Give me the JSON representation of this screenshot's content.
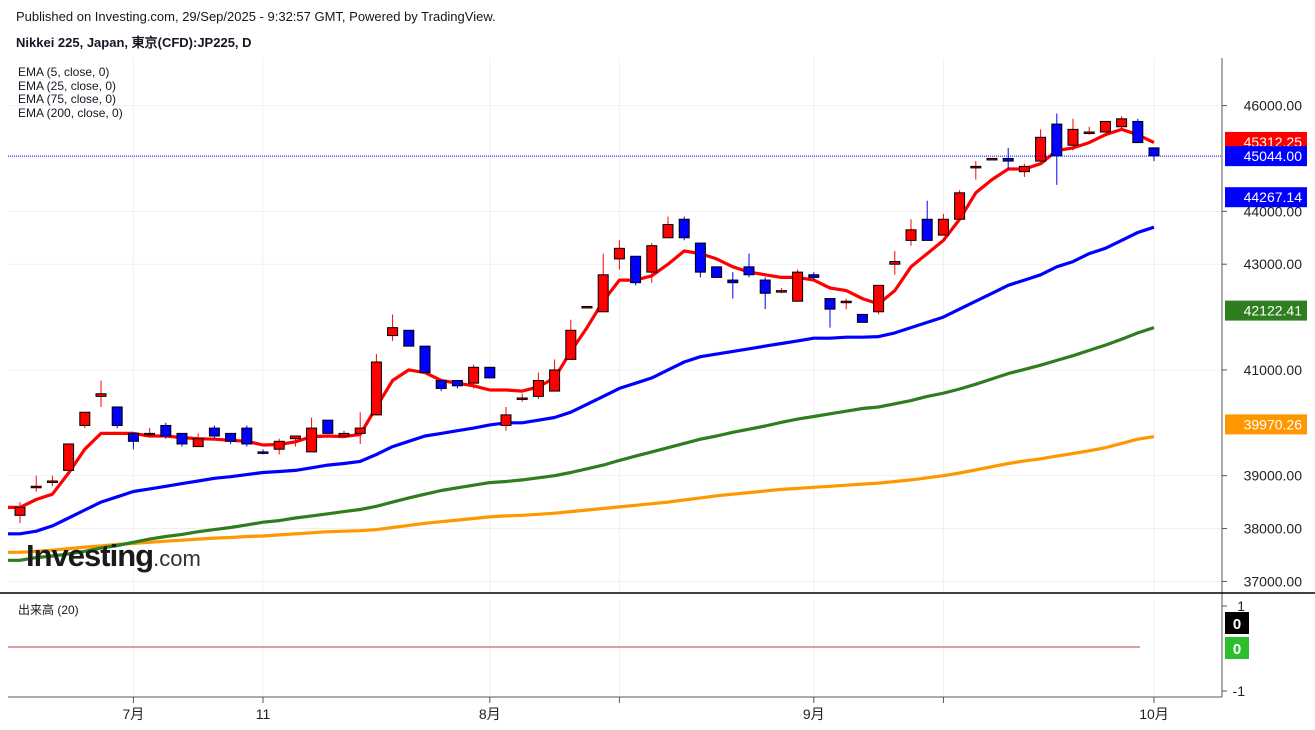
{
  "header": {
    "published": "Published on Investing.com, 29/Sep/2025 - 9:32:57 GMT, Powered by TradingView.",
    "instrument": "Nikkei 225, Japan, 東京(CFD):JP225, D"
  },
  "legend": {
    "ema_lines": [
      "EMA (5, close, 0)",
      "EMA (25, close, 0)",
      "EMA (75, close, 0)",
      "EMA (200, close, 0)"
    ],
    "volume_label": "出来高 (20)"
  },
  "watermark": {
    "brand": "Investing",
    "suffix": ".com"
  },
  "colors": {
    "up": "#ff0000",
    "down": "#0000ff",
    "ema5": "#ff0000",
    "ema25": "#0000ff",
    "ema75": "#2e7d1e",
    "ema200": "#ff9800",
    "last_price_line": "#0000ff"
  },
  "chart_data": {
    "type": "candlestick",
    "ylim": [
      36800,
      46900
    ],
    "y_ticks": [
      "37000.00",
      "38000.00",
      "39000.00",
      "41000.00",
      "43000.00",
      "44000.00",
      "46000.00"
    ],
    "x_ticks": [
      {
        "label": "7月",
        "index": 7
      },
      {
        "label": "11",
        "index": 15
      },
      {
        "label": "8月",
        "index": 29
      },
      {
        "label": "",
        "index": 37
      },
      {
        "label": "9月",
        "index": 49
      },
      {
        "label": "",
        "index": 57
      },
      {
        "label": "10月",
        "index": 70
      }
    ],
    "candles": [
      {
        "o": 38250,
        "h": 38500,
        "l": 38100,
        "c": 38400
      },
      {
        "o": 38800,
        "h": 39000,
        "l": 38700,
        "c": 38800
      },
      {
        "o": 38900,
        "h": 39000,
        "l": 38800,
        "c": 38900
      },
      {
        "o": 39100,
        "h": 39600,
        "l": 39100,
        "c": 39600
      },
      {
        "o": 39950,
        "h": 40200,
        "l": 39900,
        "c": 40200
      },
      {
        "o": 40500,
        "h": 40800,
        "l": 40300,
        "c": 40550
      },
      {
        "o": 40300,
        "h": 40300,
        "l": 39900,
        "c": 39950
      },
      {
        "o": 39800,
        "h": 39800,
        "l": 39500,
        "c": 39650
      },
      {
        "o": 39800,
        "h": 39900,
        "l": 39750,
        "c": 39800
      },
      {
        "o": 39950,
        "h": 40000,
        "l": 39700,
        "c": 39750
      },
      {
        "o": 39800,
        "h": 39800,
        "l": 39550,
        "c": 39600
      },
      {
        "o": 39550,
        "h": 39800,
        "l": 39550,
        "c": 39700
      },
      {
        "o": 39900,
        "h": 39950,
        "l": 39700,
        "c": 39750
      },
      {
        "o": 39800,
        "h": 39800,
        "l": 39600,
        "c": 39650
      },
      {
        "o": 39900,
        "h": 39950,
        "l": 39550,
        "c": 39600
      },
      {
        "o": 39450,
        "h": 39500,
        "l": 39400,
        "c": 39430
      },
      {
        "o": 39500,
        "h": 39700,
        "l": 39400,
        "c": 39650
      },
      {
        "o": 39700,
        "h": 39750,
        "l": 39550,
        "c": 39750
      },
      {
        "o": 39450,
        "h": 40100,
        "l": 39450,
        "c": 39900
      },
      {
        "o": 40050,
        "h": 40050,
        "l": 39800,
        "c": 39800
      },
      {
        "o": 39750,
        "h": 39850,
        "l": 39750,
        "c": 39800
      },
      {
        "o": 39800,
        "h": 40200,
        "l": 39600,
        "c": 39900
      },
      {
        "o": 40150,
        "h": 41300,
        "l": 40150,
        "c": 41150
      },
      {
        "o": 41650,
        "h": 42050,
        "l": 41550,
        "c": 41800
      },
      {
        "o": 41750,
        "h": 41750,
        "l": 41450,
        "c": 41450
      },
      {
        "o": 41450,
        "h": 41450,
        "l": 40950,
        "c": 40950
      },
      {
        "o": 40800,
        "h": 40800,
        "l": 40600,
        "c": 40650
      },
      {
        "o": 40800,
        "h": 40800,
        "l": 40650,
        "c": 40700
      },
      {
        "o": 40750,
        "h": 41100,
        "l": 40650,
        "c": 41050
      },
      {
        "o": 41050,
        "h": 41050,
        "l": 40850,
        "c": 40850
      },
      {
        "o": 39950,
        "h": 40300,
        "l": 39850,
        "c": 40150
      },
      {
        "o": 40450,
        "h": 40550,
        "l": 40400,
        "c": 40470
      },
      {
        "o": 40500,
        "h": 40950,
        "l": 40450,
        "c": 40800
      },
      {
        "o": 40600,
        "h": 41200,
        "l": 40600,
        "c": 41000
      },
      {
        "o": 41200,
        "h": 41950,
        "l": 41200,
        "c": 41750
      },
      {
        "o": 42200,
        "h": 42200,
        "l": 42200,
        "c": 42200
      },
      {
        "o": 42100,
        "h": 43200,
        "l": 42100,
        "c": 42800
      },
      {
        "o": 43100,
        "h": 43450,
        "l": 42900,
        "c": 43300
      },
      {
        "o": 43150,
        "h": 43150,
        "l": 42600,
        "c": 42650
      },
      {
        "o": 42850,
        "h": 43400,
        "l": 42650,
        "c": 43350
      },
      {
        "o": 43500,
        "h": 43900,
        "l": 43500,
        "c": 43750
      },
      {
        "o": 43850,
        "h": 43900,
        "l": 43450,
        "c": 43500
      },
      {
        "o": 43400,
        "h": 43400,
        "l": 42750,
        "c": 42850
      },
      {
        "o": 42950,
        "h": 42950,
        "l": 42750,
        "c": 42750
      },
      {
        "o": 42700,
        "h": 42850,
        "l": 42350,
        "c": 42650
      },
      {
        "o": 42950,
        "h": 43200,
        "l": 42750,
        "c": 42800
      },
      {
        "o": 42700,
        "h": 42750,
        "l": 42150,
        "c": 42450
      },
      {
        "o": 42500,
        "h": 42550,
        "l": 42450,
        "c": 42500
      },
      {
        "o": 42300,
        "h": 42900,
        "l": 42300,
        "c": 42850
      },
      {
        "o": 42800,
        "h": 42850,
        "l": 42700,
        "c": 42750
      },
      {
        "o": 42350,
        "h": 42350,
        "l": 41800,
        "c": 42150
      },
      {
        "o": 42300,
        "h": 42350,
        "l": 42150,
        "c": 42300
      },
      {
        "o": 42050,
        "h": 42050,
        "l": 41900,
        "c": 41900
      },
      {
        "o": 42100,
        "h": 42600,
        "l": 42050,
        "c": 42600
      },
      {
        "o": 43000,
        "h": 43250,
        "l": 42800,
        "c": 43050
      },
      {
        "o": 43450,
        "h": 43850,
        "l": 43350,
        "c": 43650
      },
      {
        "o": 43850,
        "h": 44200,
        "l": 43450,
        "c": 43450
      },
      {
        "o": 43550,
        "h": 43950,
        "l": 43550,
        "c": 43850
      },
      {
        "o": 43850,
        "h": 44400,
        "l": 43850,
        "c": 44350
      },
      {
        "o": 44850,
        "h": 44950,
        "l": 44600,
        "c": 44850
      },
      {
        "o": 45000,
        "h": 45000,
        "l": 45000,
        "c": 45000
      },
      {
        "o": 45000,
        "h": 45200,
        "l": 44800,
        "c": 44950
      },
      {
        "o": 44750,
        "h": 44900,
        "l": 44650,
        "c": 44850
      },
      {
        "o": 44950,
        "h": 45550,
        "l": 44950,
        "c": 45400
      },
      {
        "o": 45650,
        "h": 45850,
        "l": 44500,
        "c": 45050
      },
      {
        "o": 45250,
        "h": 45750,
        "l": 45150,
        "c": 45550
      },
      {
        "o": 45500,
        "h": 45600,
        "l": 45450,
        "c": 45500
      },
      {
        "o": 45500,
        "h": 45700,
        "l": 45500,
        "c": 45700
      },
      {
        "o": 45600,
        "h": 45800,
        "l": 45550,
        "c": 45750
      },
      {
        "o": 45700,
        "h": 45750,
        "l": 45350,
        "c": 45300
      },
      {
        "o": 45200,
        "h": 45200,
        "l": 44950,
        "c": 45050
      }
    ],
    "ema5": [
      38400,
      38550,
      38650,
      39050,
      39500,
      39800,
      39800,
      39800,
      39750,
      39750,
      39720,
      39700,
      39690,
      39670,
      39650,
      39580,
      39590,
      39640,
      39740,
      39750,
      39740,
      39780,
      40300,
      40800,
      41000,
      40950,
      40800,
      40750,
      40700,
      40620,
      40620,
      40600,
      40680,
      40850,
      41350,
      41800,
      42300,
      42700,
      42700,
      42780,
      43000,
      43250,
      43200,
      43100,
      42950,
      42850,
      42800,
      42750,
      42750,
      42700,
      42550,
      42500,
      42350,
      42250,
      42500,
      42950,
      43200,
      43450,
      43850,
      44350,
      44600,
      44800,
      44800,
      44900,
      45150,
      45200,
      45300,
      45450,
      45550,
      45450,
      45300
    ],
    "ema25": [
      37900,
      37950,
      38050,
      38200,
      38350,
      38500,
      38600,
      38700,
      38750,
      38800,
      38850,
      38900,
      38950,
      38980,
      39020,
      39060,
      39080,
      39100,
      39150,
      39200,
      39230,
      39270,
      39400,
      39550,
      39650,
      39750,
      39800,
      39850,
      39900,
      39960,
      40000,
      40000,
      40050,
      40100,
      40200,
      40350,
      40500,
      40650,
      40750,
      40850,
      41000,
      41150,
      41250,
      41300,
      41350,
      41400,
      41450,
      41500,
      41550,
      41600,
      41600,
      41620,
      41620,
      41630,
      41700,
      41800,
      41900,
      42000,
      42150,
      42300,
      42450,
      42600,
      42700,
      42800,
      42950,
      43050,
      43200,
      43300,
      43450,
      43600,
      43700
    ],
    "ema75": [
      37400,
      37450,
      37480,
      37520,
      37570,
      37630,
      37680,
      37740,
      37800,
      37850,
      37890,
      37940,
      37980,
      38020,
      38070,
      38120,
      38150,
      38200,
      38240,
      38280,
      38320,
      38360,
      38420,
      38500,
      38580,
      38650,
      38720,
      38770,
      38820,
      38870,
      38890,
      38920,
      38960,
      39000,
      39060,
      39130,
      39200,
      39290,
      39370,
      39450,
      39530,
      39610,
      39690,
      39750,
      39820,
      39880,
      39940,
      40010,
      40070,
      40120,
      40170,
      40220,
      40270,
      40300,
      40360,
      40420,
      40500,
      40560,
      40640,
      40730,
      40830,
      40930,
      41010,
      41090,
      41180,
      41270,
      41370,
      41470,
      41580,
      41700,
      41800
    ],
    "ema200": [
      37550,
      37570,
      37590,
      37620,
      37650,
      37670,
      37700,
      37720,
      37740,
      37760,
      37780,
      37800,
      37820,
      37830,
      37850,
      37860,
      37880,
      37900,
      37920,
      37940,
      37950,
      37960,
      37980,
      38020,
      38060,
      38100,
      38130,
      38160,
      38190,
      38220,
      38240,
      38250,
      38270,
      38290,
      38320,
      38350,
      38380,
      38410,
      38440,
      38470,
      38500,
      38540,
      38580,
      38620,
      38650,
      38680,
      38710,
      38740,
      38760,
      38780,
      38800,
      38820,
      38840,
      38860,
      38890,
      38920,
      38960,
      39000,
      39050,
      39110,
      39170,
      39230,
      39280,
      39320,
      39370,
      39420,
      39470,
      39530,
      39610,
      39690,
      39740
    ],
    "last_price": 45044.0,
    "price_tags": [
      {
        "label": "45312.25",
        "value": 45312.25,
        "color": "#ff0000"
      },
      {
        "label": "45044.00",
        "value": 45044.0,
        "color": "#0000ff"
      },
      {
        "label": "44267.14",
        "value": 44267.14,
        "color": "#0000ff"
      },
      {
        "label": "42122.41",
        "value": 42122.41,
        "color": "#2e7d1e"
      },
      {
        "label": "39970.26",
        "value": 39970.26,
        "color": "#ff9800"
      }
    ],
    "volume": {
      "y_ticks": [
        "1",
        "-1"
      ],
      "tags": [
        {
          "label": "0",
          "color": "#000000"
        },
        {
          "label": "0",
          "color": "#2bc02b"
        }
      ]
    }
  }
}
